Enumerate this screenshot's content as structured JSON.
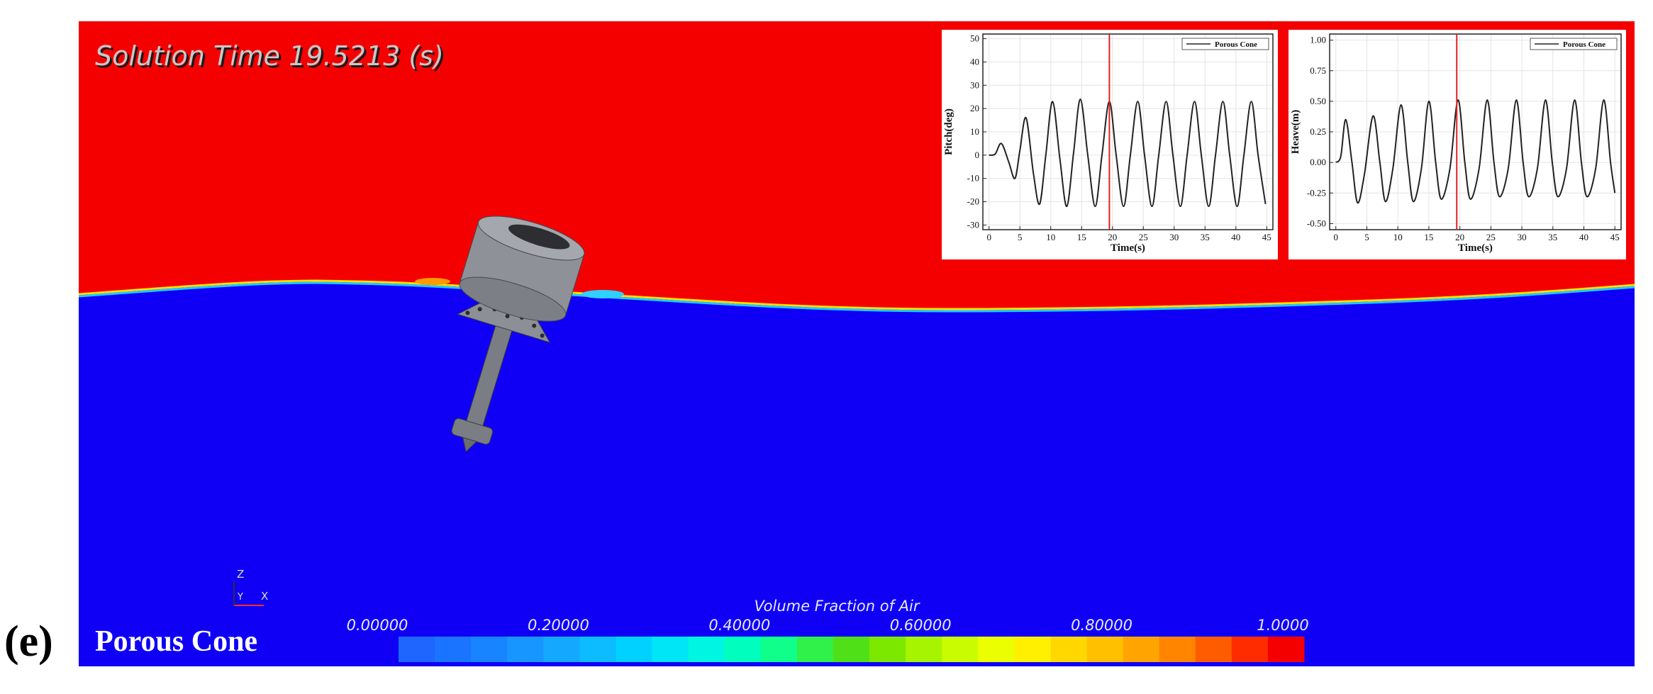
{
  "solution_time": "Solution Time 19.5213 (s)",
  "panel_label": "(e)",
  "case_name": "Porous Cone",
  "axes_triad": {
    "z": "Z",
    "y": "Y",
    "x": "X"
  },
  "colorbar": {
    "title": "Volume Fraction of Air",
    "range": [
      0,
      1
    ],
    "ticks": [
      {
        "value": 0,
        "label": "0.00000"
      },
      {
        "value": 0.2,
        "label": "0.20000"
      },
      {
        "value": 0.4,
        "label": "0.40000"
      },
      {
        "value": 0.6,
        "label": "0.60000"
      },
      {
        "value": 0.8,
        "label": "0.80000"
      },
      {
        "value": 1,
        "label": "1.0000"
      }
    ],
    "colors": [
      "#1e66ff",
      "#1a74ff",
      "#1884ff",
      "#1896ff",
      "#14a8ff",
      "#0cbcff",
      "#00d2ff",
      "#00e6f6",
      "#00f6e0",
      "#00ffbe",
      "#10ff8a",
      "#30f04a",
      "#50e018",
      "#7ce800",
      "#a6f400",
      "#cafc00",
      "#ecff00",
      "#fff000",
      "#ffd800",
      "#ffc000",
      "#ffa400",
      "#ff8400",
      "#ff5c00",
      "#ff2c00",
      "#f40000"
    ]
  },
  "chart_data": [
    {
      "type": "line",
      "x_label": "Time(s)",
      "y_label": "Pitch(deg)",
      "xlim": [
        -1,
        46
      ],
      "xticks": [
        0,
        5,
        10,
        15,
        20,
        25,
        30,
        35,
        40,
        45
      ],
      "ylim": [
        -32,
        52
      ],
      "yticks": [
        -30,
        -20,
        -10,
        0,
        10,
        20,
        30,
        40,
        50
      ],
      "grid": true,
      "legend": "upper right",
      "marker_x": 19.5,
      "marker_color": "#e02020",
      "x": [
        0,
        1,
        2,
        3.2,
        4.2,
        5,
        6,
        7.2,
        8.2,
        9.2,
        10.3,
        11.5,
        12.6,
        13.7,
        14.8,
        16,
        17.2,
        18.3,
        19.5,
        20.6,
        21.8,
        22.9,
        24.1,
        25.2,
        26.4,
        27.5,
        28.7,
        29.8,
        31,
        32.1,
        33.3,
        34.4,
        35.6,
        36.7,
        37.9,
        39,
        40.2,
        41.3,
        42.5,
        43.6,
        44.8
      ],
      "series": [
        {
          "name": "Porous Cone",
          "color": "#222222",
          "values": [
            0,
            0.5,
            5,
            -3,
            -10,
            2,
            16,
            -8,
            -21,
            0,
            23,
            -2,
            -22,
            1,
            24,
            0,
            -22,
            0,
            23,
            0,
            -22,
            0,
            23,
            0,
            -22,
            0,
            23,
            0,
            -22,
            0,
            23,
            0,
            -22,
            0,
            23,
            0,
            -22,
            0,
            23,
            0,
            -21
          ]
        }
      ]
    },
    {
      "type": "line",
      "x_label": "Time(s)",
      "y_label": "Heave(m)",
      "xlim": [
        -1,
        46
      ],
      "xticks": [
        0,
        5,
        10,
        15,
        20,
        25,
        30,
        35,
        40,
        45
      ],
      "ylim": [
        -0.55,
        1.05
      ],
      "yticks": [
        {
          "value": -0.5,
          "label": "-0.50"
        },
        {
          "value": -0.25,
          "label": "-0.25"
        },
        {
          "value": 0,
          "label": "0.00"
        },
        {
          "value": 0.25,
          "label": "0.25"
        },
        {
          "value": 0.5,
          "label": "0.50"
        },
        {
          "value": 0.75,
          "label": "0.75"
        },
        {
          "value": 1,
          "label": "1.00"
        }
      ],
      "grid": true,
      "legend": "upper right",
      "marker_x": 19.5,
      "marker_color": "#e02020",
      "x": [
        0,
        0.8,
        1.6,
        2.6,
        3.5,
        4.6,
        6,
        7.1,
        8,
        9.2,
        10.5,
        11.6,
        12.5,
        13.8,
        15,
        16.1,
        17,
        18.4,
        19.7,
        20.8,
        21.7,
        23.1,
        24.4,
        25.5,
        26.4,
        27.8,
        29.1,
        30.2,
        31.1,
        32.5,
        33.8,
        34.9,
        35.8,
        37.2,
        38.5,
        39.6,
        40.5,
        41.9,
        43.2,
        44.3,
        45
      ],
      "series": [
        {
          "name": "Porous Cone",
          "color": "#222222",
          "values": [
            0,
            0.05,
            0.35,
            0,
            -0.33,
            -0.1,
            0.38,
            0,
            -0.32,
            -0.05,
            0.47,
            0,
            -0.32,
            -0.05,
            0.5,
            0,
            -0.3,
            -0.05,
            0.51,
            0,
            -0.3,
            -0.05,
            0.51,
            0,
            -0.28,
            -0.05,
            0.51,
            0,
            -0.28,
            -0.05,
            0.51,
            0,
            -0.28,
            -0.05,
            0.51,
            0,
            -0.28,
            -0.05,
            0.51,
            0,
            -0.25
          ]
        }
      ]
    }
  ]
}
